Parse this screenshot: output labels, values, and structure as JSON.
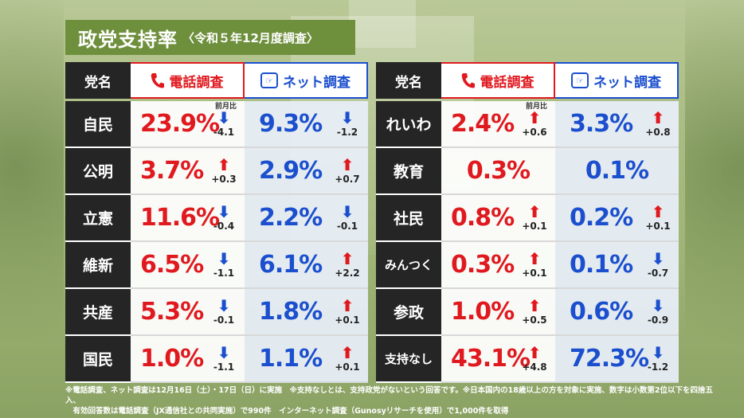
{
  "title": "政党支持率",
  "subtitle": "〈令和５年12月度調査〉",
  "headers": {
    "party": "党名",
    "phone": "電話調査",
    "net": "ネット調査"
  },
  "prev_label": "前月比",
  "colors": {
    "phone": "#e0191f",
    "net": "#1b4fce",
    "up": "#e0191f",
    "down": "#1b4fce"
  },
  "left": [
    {
      "party": "自民",
      "phone": "23.9%",
      "phone_dir": "down",
      "phone_delta": "-4.1",
      "net": "9.3%",
      "net_dir": "down",
      "net_delta": "-1.2"
    },
    {
      "party": "公明",
      "phone": "3.7%",
      "phone_dir": "up",
      "phone_delta": "+0.3",
      "net": "2.9%",
      "net_dir": "up",
      "net_delta": "+0.7"
    },
    {
      "party": "立憲",
      "phone": "11.6%",
      "phone_dir": "down",
      "phone_delta": "-0.4",
      "net": "2.2%",
      "net_dir": "down",
      "net_delta": "-0.1"
    },
    {
      "party": "維新",
      "phone": "6.5%",
      "phone_dir": "down",
      "phone_delta": "-1.1",
      "net": "6.1%",
      "net_dir": "up",
      "net_delta": "+2.2"
    },
    {
      "party": "共産",
      "phone": "5.3%",
      "phone_dir": "down",
      "phone_delta": "-0.1",
      "net": "1.8%",
      "net_dir": "up",
      "net_delta": "+0.1"
    },
    {
      "party": "国民",
      "phone": "1.0%",
      "phone_dir": "down",
      "phone_delta": "-1.1",
      "net": "1.1%",
      "net_dir": "up",
      "net_delta": "+0.1"
    }
  ],
  "right": [
    {
      "party": "れいわ",
      "phone": "2.4%",
      "phone_dir": "up",
      "phone_delta": "+0.6",
      "net": "3.3%",
      "net_dir": "up",
      "net_delta": "+0.8"
    },
    {
      "party": "教育",
      "phone": "0.3%",
      "phone_dir": "",
      "phone_delta": "",
      "net": "0.1%",
      "net_dir": "",
      "net_delta": ""
    },
    {
      "party": "社民",
      "phone": "0.8%",
      "phone_dir": "up",
      "phone_delta": "+0.1",
      "net": "0.2%",
      "net_dir": "up",
      "net_delta": "+0.1"
    },
    {
      "party": "みんつく",
      "phone": "0.3%",
      "phone_dir": "up",
      "phone_delta": "+0.1",
      "net": "0.1%",
      "net_dir": "down",
      "net_delta": "-0.7"
    },
    {
      "party": "参政",
      "phone": "1.0%",
      "phone_dir": "up",
      "phone_delta": "+0.5",
      "net": "0.6%",
      "net_dir": "down",
      "net_delta": "-0.9"
    },
    {
      "party": "支持なし",
      "phone": "43.1%",
      "phone_dir": "up",
      "phone_delta": "+4.8",
      "net": "72.3%",
      "net_dir": "down",
      "net_delta": "-1.2"
    }
  ],
  "notes": [
    "※電話調査、ネット調査は12月16日（土）・17日（日）に実施　※支持なしとは、支持政党がないという回答です。※日本国内の18歳以上の方を対象に実施、数字は小数第2位以下を四捨五入、",
    "　有効回答数は電話調査（JX通信社との共同実施）で990件　インターネット調査（Gunosyリサーチを使用）で1,000件を取得"
  ]
}
